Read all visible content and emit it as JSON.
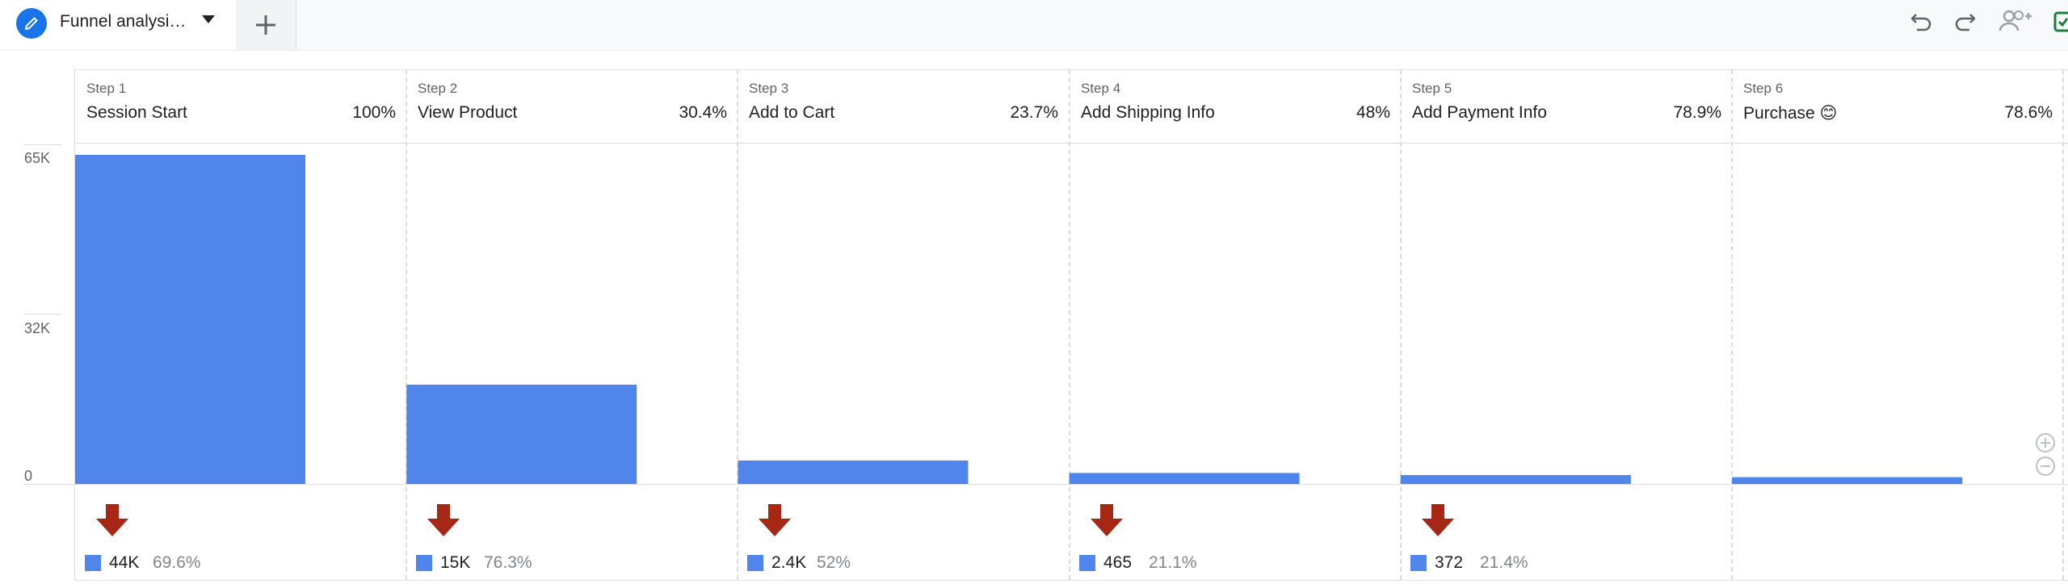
{
  "tab": {
    "title": "Funnel analysi…",
    "icons": [
      "edit-pencil-icon",
      "dropdown-caret-icon",
      "add-tab-plus-icon"
    ]
  },
  "toolbar": {
    "icons": [
      "undo-icon",
      "redo-icon",
      "share-user-icon",
      "save-icon"
    ]
  },
  "colors": {
    "bar": "#5086ec",
    "drop_arrow": "#a52714",
    "accent": "#1a73e8"
  },
  "chart_data": {
    "type": "bar",
    "categories": [
      "Session Start",
      "View Product",
      "Add to Cart",
      "Add Shipping Info",
      "Add Payment Info",
      "Purchase 😊"
    ],
    "step_labels": [
      "Step 1",
      "Step 2",
      "Step 3",
      "Step 4",
      "Step 5",
      "Step 6"
    ],
    "completion_rates": [
      "100%",
      "30.4%",
      "23.7%",
      "48%",
      "78.9%",
      "78.6%"
    ],
    "values": [
      63000,
      19000,
      4500,
      2100,
      1700,
      1300
    ],
    "y_ticks": [
      "65K",
      "32K",
      "0"
    ],
    "ylim": [
      0,
      65000
    ],
    "dropoffs": [
      {
        "count": "44K",
        "rate": "69.6%"
      },
      {
        "count": "15K",
        "rate": "76.3%"
      },
      {
        "count": "2.4K",
        "rate": "52%"
      },
      {
        "count": "465",
        "rate": "21.1%"
      },
      {
        "count": "372",
        "rate": "21.4%"
      }
    ]
  },
  "zoom": {
    "icons": [
      "zoom-in-icon",
      "zoom-out-icon"
    ]
  }
}
